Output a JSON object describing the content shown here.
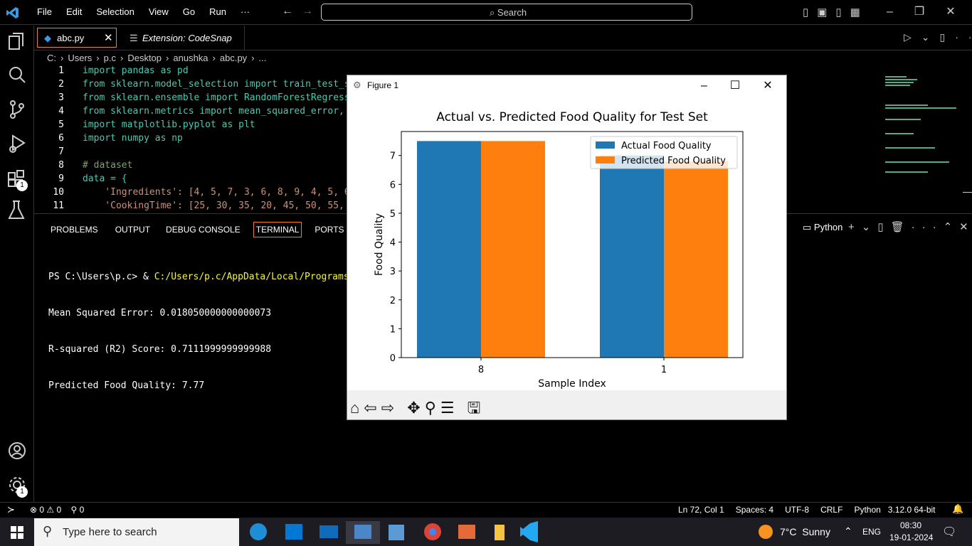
{
  "menu": [
    "File",
    "Edit",
    "Selection",
    "View",
    "Go",
    "Run",
    "···"
  ],
  "search": "Search",
  "tabs": [
    "abc.py",
    "Extension: CodeSnap"
  ],
  "breadcrumb": [
    "C:",
    "Users",
    "p.c",
    "Desktop",
    "anushka",
    "abc.py",
    "..."
  ],
  "code": [
    {
      "number": 1,
      "text": "import pandas as pd"
    },
    {
      "number": 2,
      "text": "from sklearn.model_selection import train_test_s"
    },
    {
      "number": 3,
      "text": "from sklearn.ensemble import RandomForestRegress"
    },
    {
      "number": 4,
      "text": "from sklearn.metrics import mean_squared_error,"
    },
    {
      "number": 5,
      "text": "import matplotlib.pyplot as plt"
    },
    {
      "number": 6,
      "text": "import numpy as np"
    },
    {
      "number": 7
    },
    {
      "number": 8,
      "text": "# dataset"
    },
    {
      "number": 9,
      "text": "data = {"
    },
    {
      "number": 10,
      "text": "    'Ingredients': [4, 5, 7, 3, 6, 8, 9, 4, 5, 6"
    },
    {
      "number": 11,
      "text": "    'CookingTime': [25, 30, 35, 20, 45, 50, 55,"
    }
  ],
  "panel_tabs": [
    "PROBLEMS",
    "OUTPUT",
    "DEBUG CONSOLE",
    "TERMINAL",
    "PORTS"
  ],
  "terminal_shell": "Python",
  "terminal": {
    "prompt": "PS C:\\Users\\p.c> & ",
    "command": "C:/Users/p.c/AppData/Local/Programs/Pytho",
    "output": [
      "Mean Squared Error: 0.018050000000000073",
      "R-squared (R2) Score: 0.7111999999999988",
      "Predicted Food Quality: 7.77"
    ]
  },
  "badges": [
    1,
    1
  ],
  "status_bar": {
    "errors": 0,
    "warnings": 0,
    "ports": 0,
    "items": [
      "Ln 72, Col 1",
      "Spaces: 4",
      "UTF-8",
      "CRLF",
      "Python",
      "3.12.0 64-bit"
    ]
  },
  "taskbar": {
    "search": "Type here to search",
    "weather": "7°C  Sunny",
    "language": "ENG",
    "time": "08:30",
    "date": "19-01-2024"
  },
  "figure": {
    "window_title": "Figure 1"
  },
  "chart_data": {
    "type": "bar",
    "title": "Actual vs. Predicted Food Quality for Test Set",
    "x_label": "Sample Index",
    "y_label": "Food Quality",
    "categories": [
      "8",
      "1"
    ],
    "series": [
      {
        "name": "Actual Food Quality",
        "color": "#1f77b4",
        "values": [
          7.5,
          7.0
        ]
      },
      {
        "name": "Predicted Food Quality",
        "color": "#ff7f0e",
        "values": [
          7.5,
          6.8
        ]
      }
    ],
    "ylim": [
      0,
      7.83
    ],
    "yticks": [
      0,
      1,
      2,
      3,
      4,
      5,
      6,
      7
    ],
    "legend": "upper right"
  }
}
